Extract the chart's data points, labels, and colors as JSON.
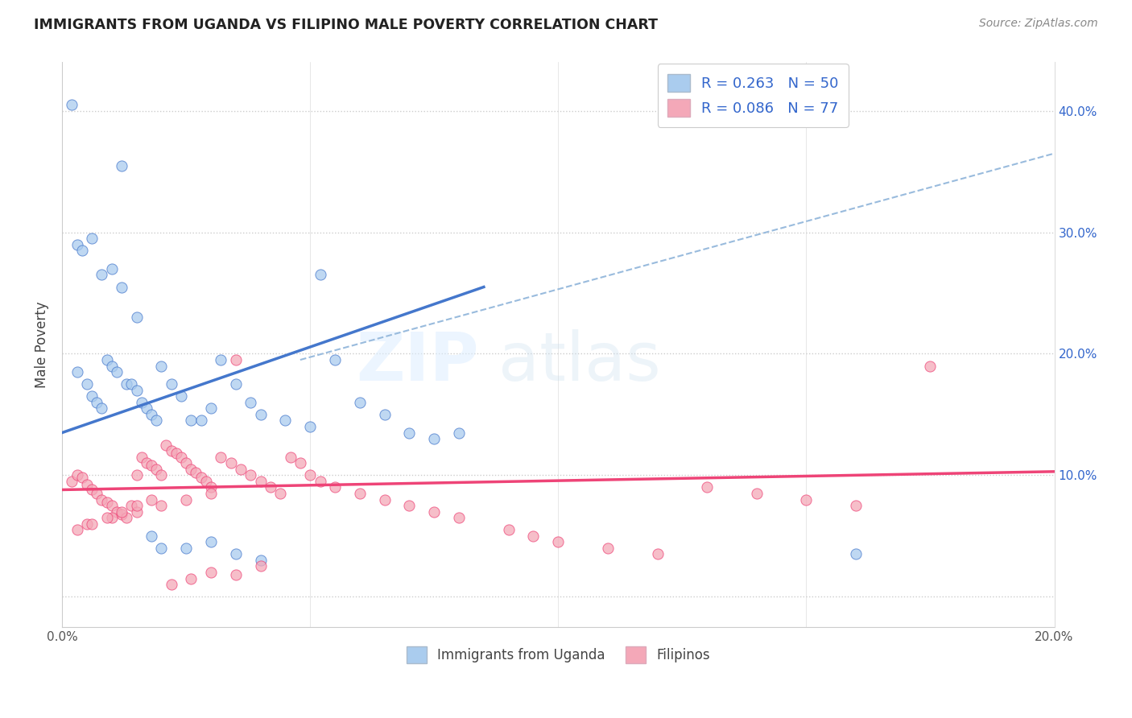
{
  "title": "IMMIGRANTS FROM UGANDA VS FILIPINO MALE POVERTY CORRELATION CHART",
  "source": "Source: ZipAtlas.com",
  "ylabel": "Male Poverty",
  "xlim": [
    0.0,
    0.2
  ],
  "ylim": [
    -0.025,
    0.44
  ],
  "color_uganda": "#aaccee",
  "color_filipino": "#f4a8b8",
  "color_uganda_line": "#4477cc",
  "color_filipino_line": "#ee4477",
  "color_dashed": "#99bbdd",
  "uganda_line_x": [
    0.0,
    0.085
  ],
  "uganda_line_y": [
    0.135,
    0.255
  ],
  "filipino_line_x": [
    0.0,
    0.2
  ],
  "filipino_line_y": [
    0.088,
    0.103
  ],
  "dash_line_x": [
    0.048,
    0.2
  ],
  "dash_line_y": [
    0.195,
    0.365
  ],
  "uganda_scatter_x": [
    0.002,
    0.012,
    0.052,
    0.003,
    0.005,
    0.006,
    0.007,
    0.008,
    0.009,
    0.01,
    0.011,
    0.013,
    0.014,
    0.015,
    0.016,
    0.017,
    0.018,
    0.019,
    0.02,
    0.022,
    0.024,
    0.026,
    0.028,
    0.03,
    0.032,
    0.035,
    0.038,
    0.04,
    0.045,
    0.05,
    0.055,
    0.06,
    0.065,
    0.07,
    0.075,
    0.08,
    0.003,
    0.004,
    0.006,
    0.008,
    0.01,
    0.012,
    0.015,
    0.018,
    0.02,
    0.025,
    0.03,
    0.035,
    0.04,
    0.16
  ],
  "uganda_scatter_y": [
    0.405,
    0.355,
    0.265,
    0.185,
    0.175,
    0.165,
    0.16,
    0.155,
    0.195,
    0.19,
    0.185,
    0.175,
    0.175,
    0.17,
    0.16,
    0.155,
    0.15,
    0.145,
    0.19,
    0.175,
    0.165,
    0.145,
    0.145,
    0.155,
    0.195,
    0.175,
    0.16,
    0.15,
    0.145,
    0.14,
    0.195,
    0.16,
    0.15,
    0.135,
    0.13,
    0.135,
    0.29,
    0.285,
    0.295,
    0.265,
    0.27,
    0.255,
    0.23,
    0.05,
    0.04,
    0.04,
    0.045,
    0.035,
    0.03,
    0.035
  ],
  "filipino_scatter_x": [
    0.002,
    0.003,
    0.004,
    0.005,
    0.006,
    0.007,
    0.008,
    0.009,
    0.01,
    0.011,
    0.012,
    0.013,
    0.014,
    0.015,
    0.016,
    0.017,
    0.018,
    0.019,
    0.02,
    0.021,
    0.022,
    0.023,
    0.024,
    0.025,
    0.026,
    0.027,
    0.028,
    0.029,
    0.03,
    0.032,
    0.034,
    0.036,
    0.038,
    0.04,
    0.042,
    0.044,
    0.046,
    0.048,
    0.05,
    0.052,
    0.055,
    0.06,
    0.065,
    0.07,
    0.075,
    0.08,
    0.09,
    0.095,
    0.1,
    0.11,
    0.12,
    0.13,
    0.14,
    0.15,
    0.16,
    0.175,
    0.005,
    0.01,
    0.015,
    0.02,
    0.025,
    0.03,
    0.035,
    0.04,
    0.003,
    0.006,
    0.009,
    0.012,
    0.015,
    0.018,
    0.022,
    0.026,
    0.03,
    0.035
  ],
  "filipino_scatter_y": [
    0.095,
    0.1,
    0.098,
    0.092,
    0.088,
    0.085,
    0.08,
    0.078,
    0.075,
    0.07,
    0.068,
    0.065,
    0.075,
    0.1,
    0.115,
    0.11,
    0.108,
    0.105,
    0.1,
    0.125,
    0.12,
    0.118,
    0.115,
    0.11,
    0.105,
    0.102,
    0.098,
    0.095,
    0.09,
    0.115,
    0.11,
    0.105,
    0.1,
    0.095,
    0.09,
    0.085,
    0.115,
    0.11,
    0.1,
    0.095,
    0.09,
    0.085,
    0.08,
    0.075,
    0.07,
    0.065,
    0.055,
    0.05,
    0.045,
    0.04,
    0.035,
    0.09,
    0.085,
    0.08,
    0.075,
    0.19,
    0.06,
    0.065,
    0.07,
    0.075,
    0.08,
    0.085,
    0.018,
    0.025,
    0.055,
    0.06,
    0.065,
    0.07,
    0.075,
    0.08,
    0.01,
    0.015,
    0.02,
    0.195
  ]
}
